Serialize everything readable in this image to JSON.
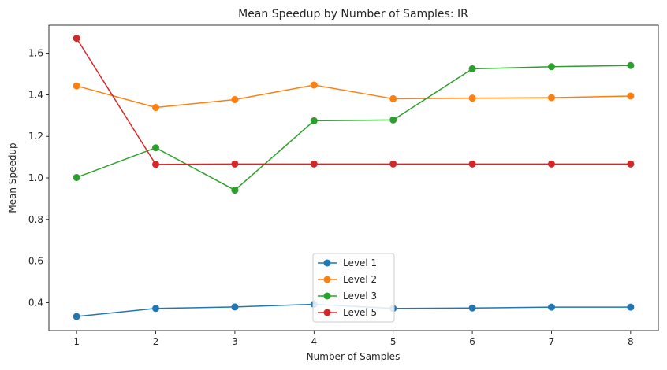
{
  "chart_data": {
    "type": "line",
    "title": "Mean Speedup by Number of Samples: IR",
    "xlabel": "Number of Samples",
    "ylabel": "Mean Speedup",
    "x": [
      1,
      2,
      3,
      4,
      5,
      6,
      7,
      8
    ],
    "xticks": [
      "1",
      "2",
      "3",
      "4",
      "5",
      "6",
      "7",
      "8"
    ],
    "yticks": [
      "0.4",
      "0.6",
      "0.8",
      "1.0",
      "1.2",
      "1.4",
      "1.6"
    ],
    "xlim": [
      0.65,
      8.35
    ],
    "ylim": [
      0.265,
      1.735
    ],
    "grid": false,
    "legend_position": "lower-center",
    "series": [
      {
        "name": "Level 1",
        "color": "#1f77b4",
        "values": [
          0.333,
          0.372,
          0.379,
          0.392,
          0.372,
          0.374,
          0.378,
          0.378
        ]
      },
      {
        "name": "Level 2",
        "color": "#ff7f0e",
        "values": [
          1.443,
          1.339,
          1.377,
          1.447,
          1.381,
          1.384,
          1.386,
          1.394
        ]
      },
      {
        "name": "Level 3",
        "color": "#2ca02c",
        "values": [
          1.002,
          1.145,
          0.941,
          1.275,
          1.279,
          1.525,
          1.535,
          1.541
        ]
      },
      {
        "name": "Level 5",
        "color": "#d62728",
        "values": [
          1.672,
          1.065,
          1.067,
          1.067,
          1.067,
          1.067,
          1.067,
          1.067
        ]
      }
    ]
  }
}
